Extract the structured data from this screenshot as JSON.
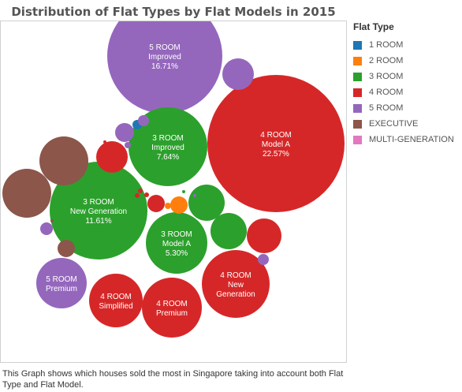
{
  "chart_data": {
    "type": "bubble",
    "title": "Distribution of Flat Types by Flat Models in 2015",
    "legend": {
      "title": "Flat Type",
      "placement": "right",
      "entries": [
        {
          "label": "1 ROOM",
          "color": "#1f77b4"
        },
        {
          "label": "2 ROOM",
          "color": "#ff7f0e"
        },
        {
          "label": "3 ROOM",
          "color": "#2ca02c"
        },
        {
          "label": "4 ROOM",
          "color": "#d62728"
        },
        {
          "label": "5 ROOM",
          "color": "#9467bd"
        },
        {
          "label": "EXECUTIVE",
          "color": "#8c564b"
        },
        {
          "label": "MULTI-GENERATION",
          "color": "#e377c2"
        }
      ]
    },
    "bubbles": [
      {
        "flat_type": "4 ROOM",
        "flat_model": "Model A",
        "label_lines": [
          "4 ROOM",
          "Model A",
          "22.57%"
        ],
        "percent": 22.57
      },
      {
        "flat_type": "5 ROOM",
        "flat_model": "Improved",
        "label_lines": [
          "5 ROOM",
          "Improved",
          "16.71%"
        ],
        "percent": 16.71
      },
      {
        "flat_type": "3 ROOM",
        "flat_model": "New Generation",
        "label_lines": [
          "3 ROOM",
          "New Generation",
          "11.61%"
        ],
        "percent": 11.61
      },
      {
        "flat_type": "3 ROOM",
        "flat_model": "Improved",
        "label_lines": [
          "3 ROOM",
          "Improved",
          "7.64%"
        ],
        "percent": 7.64
      },
      {
        "flat_type": "3 ROOM",
        "flat_model": "Model A",
        "label_lines": [
          "3 ROOM",
          "Model A",
          "5.30%"
        ],
        "percent": 5.3
      },
      {
        "flat_type": "4 ROOM",
        "flat_model": "New Generation",
        "label_lines": [
          "4 ROOM",
          "New",
          "Generation"
        ],
        "percent": 5.2
      },
      {
        "flat_type": "4 ROOM",
        "flat_model": "Premium",
        "label_lines": [
          "4 ROOM",
          "Premium"
        ],
        "percent": 3.9
      },
      {
        "flat_type": "4 ROOM",
        "flat_model": "Simplified",
        "label_lines": [
          "4 ROOM",
          "Simplified"
        ],
        "percent": 2.8
      },
      {
        "flat_type": "5 ROOM",
        "flat_model": "Premium",
        "label_lines": [
          "5 ROOM",
          "Premium"
        ],
        "percent": 2.6
      },
      {
        "flat_type": "EXECUTIVE",
        "flat_model": "",
        "label_lines": [],
        "percent": 2.3
      },
      {
        "flat_type": "EXECUTIVE",
        "flat_model": "",
        "label_lines": [],
        "percent": 2.1
      },
      {
        "flat_type": "3 ROOM",
        "flat_model": "",
        "label_lines": [],
        "percent": 1.0
      },
      {
        "flat_type": "3 ROOM",
        "flat_model": "",
        "label_lines": [],
        "percent": 1.1
      },
      {
        "flat_type": "4 ROOM",
        "flat_model": "",
        "label_lines": [],
        "percent": 1.0
      },
      {
        "flat_type": "4 ROOM",
        "flat_model": "",
        "label_lines": [],
        "percent": 0.8
      },
      {
        "flat_type": "EXECUTIVE",
        "flat_model": "",
        "label_lines": [],
        "percent": 0.6
      },
      {
        "flat_type": "5 ROOM",
        "flat_model": "",
        "label_lines": [],
        "percent": 0.8
      },
      {
        "flat_type": "5 ROOM",
        "flat_model": "",
        "label_lines": [],
        "percent": 0.6
      },
      {
        "flat_type": "4 ROOM",
        "flat_model": "",
        "label_lines": [],
        "percent": 0.3
      },
      {
        "flat_type": "2 ROOM",
        "flat_model": "",
        "label_lines": [],
        "percent": 0.3
      },
      {
        "flat_type": "2 ROOM",
        "flat_model": "",
        "label_lines": [],
        "percent": 0.3
      },
      {
        "flat_type": "1 ROOM",
        "flat_model": "",
        "label_lines": [],
        "percent": 0.03
      },
      {
        "flat_type": "5 ROOM",
        "flat_model": "",
        "label_lines": [],
        "percent": 0.1
      },
      {
        "flat_type": "5 ROOM",
        "flat_model": "",
        "label_lines": [],
        "percent": 0.1
      },
      {
        "flat_type": "5 ROOM",
        "flat_model": "",
        "label_lines": [],
        "percent": 0.1
      },
      {
        "flat_type": "5 ROOM",
        "flat_model": "",
        "label_lines": [],
        "percent": 0.1
      },
      {
        "flat_type": "4 ROOM",
        "flat_model": "",
        "label_lines": [],
        "percent": 0.02
      },
      {
        "flat_type": "4 ROOM",
        "flat_model": "",
        "label_lines": [],
        "percent": 0.02
      },
      {
        "flat_type": "4 ROOM",
        "flat_model": "",
        "label_lines": [],
        "percent": 0.02
      },
      {
        "flat_type": "3 ROOM",
        "flat_model": "",
        "label_lines": [],
        "percent": 0.02
      },
      {
        "flat_type": "3 ROOM",
        "flat_model": "",
        "label_lines": [],
        "percent": 0.02
      },
      {
        "flat_type": "5 ROOM",
        "flat_model": "",
        "label_lines": [],
        "percent": 0.02
      },
      {
        "flat_type": "EXECUTIVE",
        "flat_model": "",
        "label_lines": [],
        "percent": 0.02
      },
      {
        "flat_type": "4 ROOM",
        "flat_model": "",
        "label_lines": [],
        "percent": 0.02
      }
    ]
  },
  "caption": "This Graph shows which houses sold the most in Singapore taking into account both Flat Type and Flat Model."
}
